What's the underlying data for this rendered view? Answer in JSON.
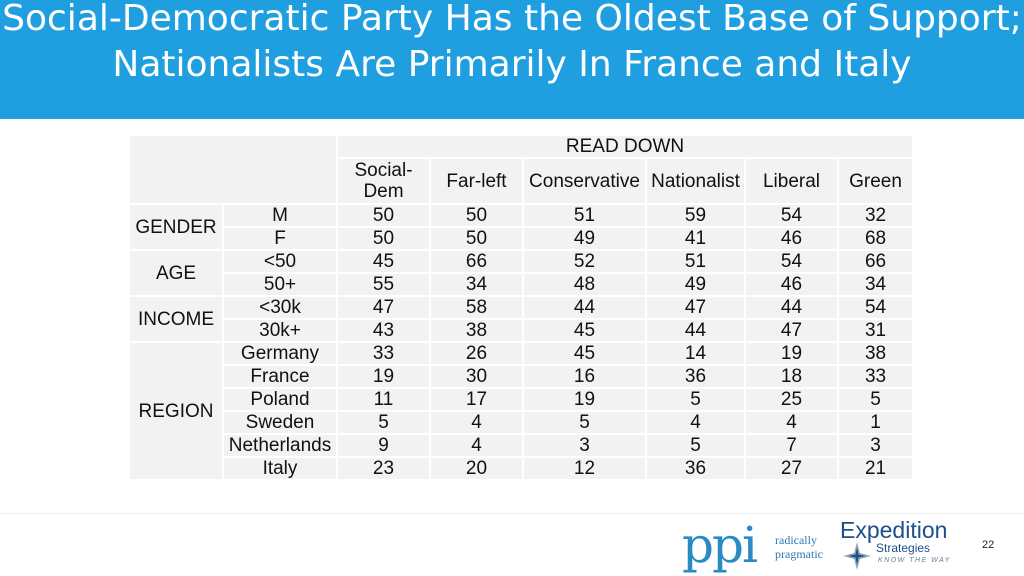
{
  "title": "Social-Democratic Party Has the Oldest Base of Support; Nationalists Are Primarily In France and Italy",
  "table": {
    "read_down_label": "READ DOWN",
    "columns": [
      "Social-Dem",
      "Far-left",
      "Conservative",
      "Nationalist",
      "Liberal",
      "Green"
    ],
    "groups": [
      {
        "label": "GENDER",
        "rows": [
          {
            "label": "M",
            "values": [
              "50",
              "50",
              "51",
              "59",
              "54",
              "32"
            ]
          },
          {
            "label": "F",
            "values": [
              "50",
              "50",
              "49",
              "41",
              "46",
              "68"
            ]
          }
        ]
      },
      {
        "label": "AGE",
        "rows": [
          {
            "label": "<50",
            "values": [
              "45",
              "66",
              "52",
              "51",
              "54",
              "66"
            ]
          },
          {
            "label": "50+",
            "values": [
              "55",
              "34",
              "48",
              "49",
              "46",
              "34"
            ]
          }
        ]
      },
      {
        "label": "INCOME",
        "rows": [
          {
            "label": "<30k",
            "values": [
              "47",
              "58",
              "44",
              "47",
              "44",
              "54"
            ]
          },
          {
            "label": "30k+",
            "values": [
              "43",
              "38",
              "45",
              "44",
              "47",
              "31"
            ]
          }
        ]
      },
      {
        "label": "REGION",
        "rows": [
          {
            "label": "Germany",
            "values": [
              "33",
              "26",
              "45",
              "14",
              "19",
              "38"
            ]
          },
          {
            "label": "France",
            "values": [
              "19",
              "30",
              "16",
              "36",
              "18",
              "33"
            ]
          },
          {
            "label": "Poland",
            "values": [
              "11",
              "17",
              "19",
              "5",
              "25",
              "5"
            ]
          },
          {
            "label": "Sweden",
            "values": [
              "5",
              "4",
              "5",
              "4",
              "4",
              "1"
            ]
          },
          {
            "label": "Netherlands",
            "values": [
              "9",
              "4",
              "3",
              "5",
              "7",
              "3"
            ]
          },
          {
            "label": "Italy",
            "values": [
              "23",
              "20",
              "12",
              "36",
              "27",
              "21"
            ]
          }
        ]
      }
    ]
  },
  "footer": {
    "ppi_mark": "ppi",
    "ppi_tagline": [
      "radically",
      "pragmatic"
    ],
    "expedition_name": "Expedition",
    "expedition_sub": "Strategies",
    "expedition_motto": "KNOW THE WAY",
    "page_number": "22"
  },
  "colors": {
    "title_bar": "#1f9ee0",
    "cell_bg": "#f2f2f2",
    "ppi_blue": "#2a8bc4",
    "expedition_navy": "#1f4e8c"
  }
}
